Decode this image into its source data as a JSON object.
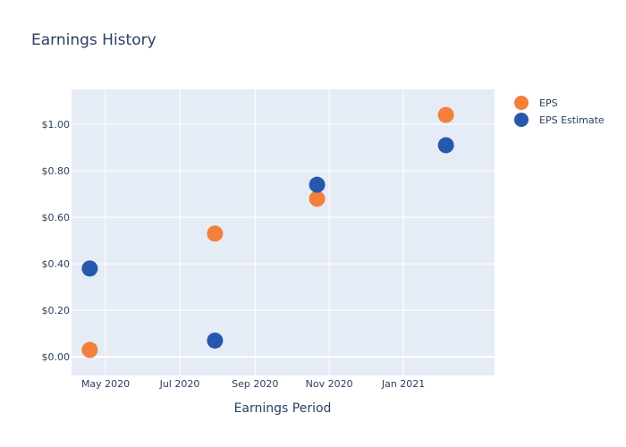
{
  "chart_data": {
    "type": "scatter",
    "title": "Earnings History",
    "xlabel": "Earnings Period",
    "ylabel": "",
    "x_ticks": [
      {
        "date": "2020-05-01",
        "label": "May 2020"
      },
      {
        "date": "2020-07-01",
        "label": "Jul 2020"
      },
      {
        "date": "2020-09-01",
        "label": "Sep 2020"
      },
      {
        "date": "2020-11-01",
        "label": "Nov 2020"
      },
      {
        "date": "2021-01-01",
        "label": "Jan 2021"
      }
    ],
    "xlim": [
      "2020-04-03",
      "2021-03-17"
    ],
    "y_ticks": [
      {
        "value": 0.0,
        "label": "$0.00"
      },
      {
        "value": 0.2,
        "label": "$0.20"
      },
      {
        "value": 0.4,
        "label": "$0.40"
      },
      {
        "value": 0.6,
        "label": "$0.60"
      },
      {
        "value": 0.8,
        "label": "$0.80"
      },
      {
        "value": 1.0,
        "label": "$1.00"
      }
    ],
    "ylim": [
      -0.08,
      1.15
    ],
    "grid": true,
    "legend_position": "top-right",
    "series": [
      {
        "name": "EPS",
        "color": "#f47f3a",
        "points": [
          {
            "x": "2020-04-18",
            "y": 0.03
          },
          {
            "x": "2020-07-30",
            "y": 0.53
          },
          {
            "x": "2020-10-22",
            "y": 0.68
          },
          {
            "x": "2021-02-05",
            "y": 1.04
          }
        ]
      },
      {
        "name": "EPS Estimate",
        "color": "#2658ad",
        "points": [
          {
            "x": "2020-04-18",
            "y": 0.38
          },
          {
            "x": "2020-07-30",
            "y": 0.07
          },
          {
            "x": "2020-10-22",
            "y": 0.74
          },
          {
            "x": "2021-02-05",
            "y": 0.91
          }
        ]
      }
    ]
  }
}
